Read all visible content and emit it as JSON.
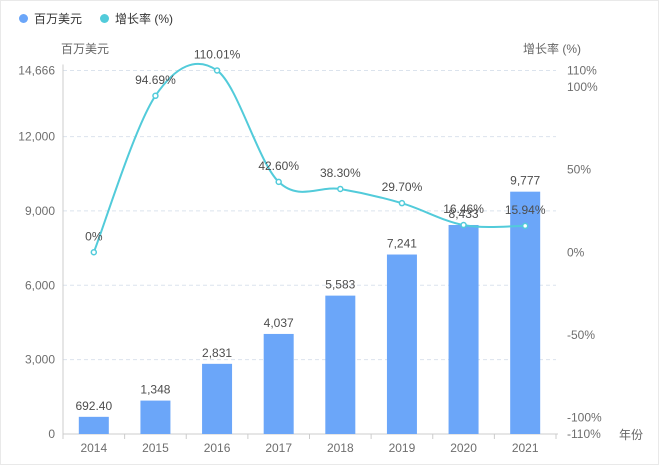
{
  "legend": {
    "items": [
      {
        "label": "百万美元",
        "color": "#6ba6f9"
      },
      {
        "label": "增长率 (%)",
        "color": "#52cbda"
      }
    ]
  },
  "colors": {
    "bar": "#6ba6f9",
    "line": "#52cbda",
    "grid": "#dbe3ed",
    "axis_line": "#cccccc",
    "tick_text": "#6e6e6e",
    "value_text": "#4d4d4d"
  },
  "chart_data": {
    "type": "bar+line",
    "title": "",
    "categories": [
      "2014",
      "2015",
      "2016",
      "2017",
      "2018",
      "2019",
      "2020",
      "2021"
    ],
    "series": [
      {
        "name": "百万美元",
        "type": "bar",
        "axis": "left",
        "values": [
          692.4,
          1348,
          2831,
          4037,
          5583,
          7241,
          8433,
          9777
        ],
        "labels": [
          "692.40",
          "1,348",
          "2,831",
          "4,037",
          "5,583",
          "7,241",
          "8,433",
          "9,777"
        ]
      },
      {
        "name": "增长率 (%)",
        "type": "line",
        "axis": "right",
        "values": [
          0,
          94.69,
          110.01,
          42.6,
          38.3,
          29.7,
          16.46,
          15.94
        ],
        "labels": [
          "0%",
          "94.69%",
          "110.01%",
          "42.60%",
          "38.30%",
          "29.70%",
          "16.46%",
          "15.94%"
        ]
      }
    ],
    "left_axis": {
      "title": "百万美元",
      "max": 14666,
      "ticks": [
        0,
        3000,
        6000,
        9000,
        12000,
        14666
      ],
      "tick_labels": [
        "0",
        "3,000",
        "6,000",
        "9,000",
        "12,000",
        "14,666"
      ]
    },
    "right_axis": {
      "title": "增长率 (%)",
      "min": -110,
      "max": 110,
      "ticks": [
        110,
        100,
        50,
        0,
        -50,
        -100,
        -110
      ],
      "tick_labels": [
        "110%",
        "100%",
        "50%",
        "0%",
        "-50%",
        "-100%",
        "-110%"
      ]
    },
    "x_axis": {
      "title": "年份"
    },
    "legend_position": "top-left",
    "grid": true
  }
}
